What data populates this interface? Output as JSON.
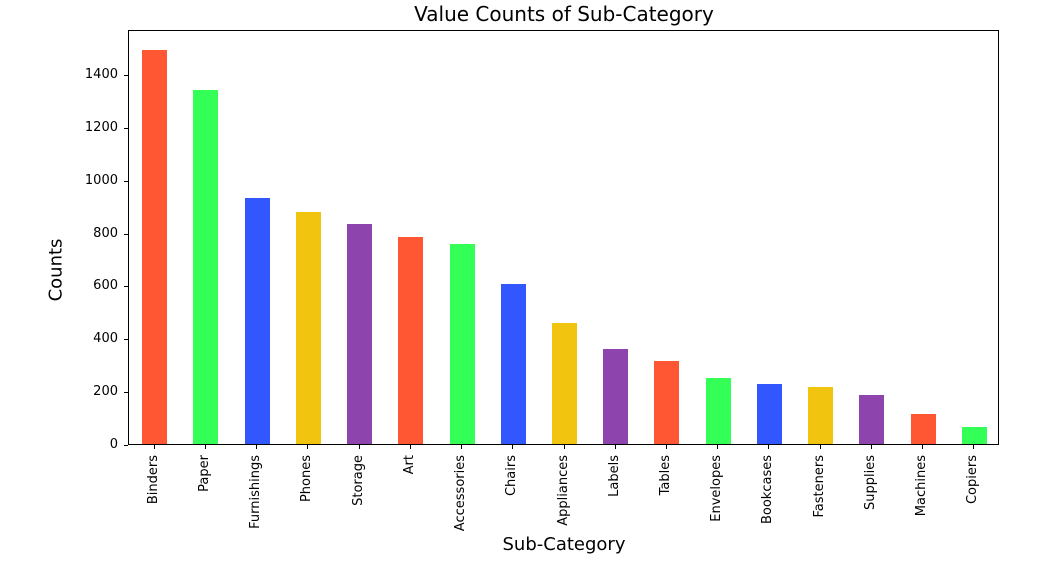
{
  "chart_data": {
    "type": "bar",
    "title": "Value Counts of Sub-Category",
    "xlabel": "Sub-Category",
    "ylabel": "Counts",
    "ylim": [
      0,
      1570
    ],
    "yticks": [
      0,
      200,
      400,
      600,
      800,
      1000,
      1200,
      1400
    ],
    "grid": false,
    "legend": null,
    "categories": [
      "Binders",
      "Paper",
      "Furnishings",
      "Phones",
      "Storage",
      "Art",
      "Accessories",
      "Chairs",
      "Appliances",
      "Labels",
      "Tables",
      "Envelopes",
      "Bookcases",
      "Fasteners",
      "Supplies",
      "Machines",
      "Copiers"
    ],
    "values": [
      1492,
      1338,
      931,
      877,
      834,
      785,
      755,
      607,
      459,
      358,
      314,
      248,
      226,
      215,
      186,
      115,
      66
    ],
    "colors": [
      "#ff5733",
      "#33ff57",
      "#3357ff",
      "#f1c40f",
      "#8e44ad",
      "#ff5733",
      "#33ff57",
      "#3357ff",
      "#f1c40f",
      "#8e44ad",
      "#ff5733",
      "#33ff57",
      "#3357ff",
      "#f1c40f",
      "#8e44ad",
      "#ff5733",
      "#33ff57"
    ]
  }
}
